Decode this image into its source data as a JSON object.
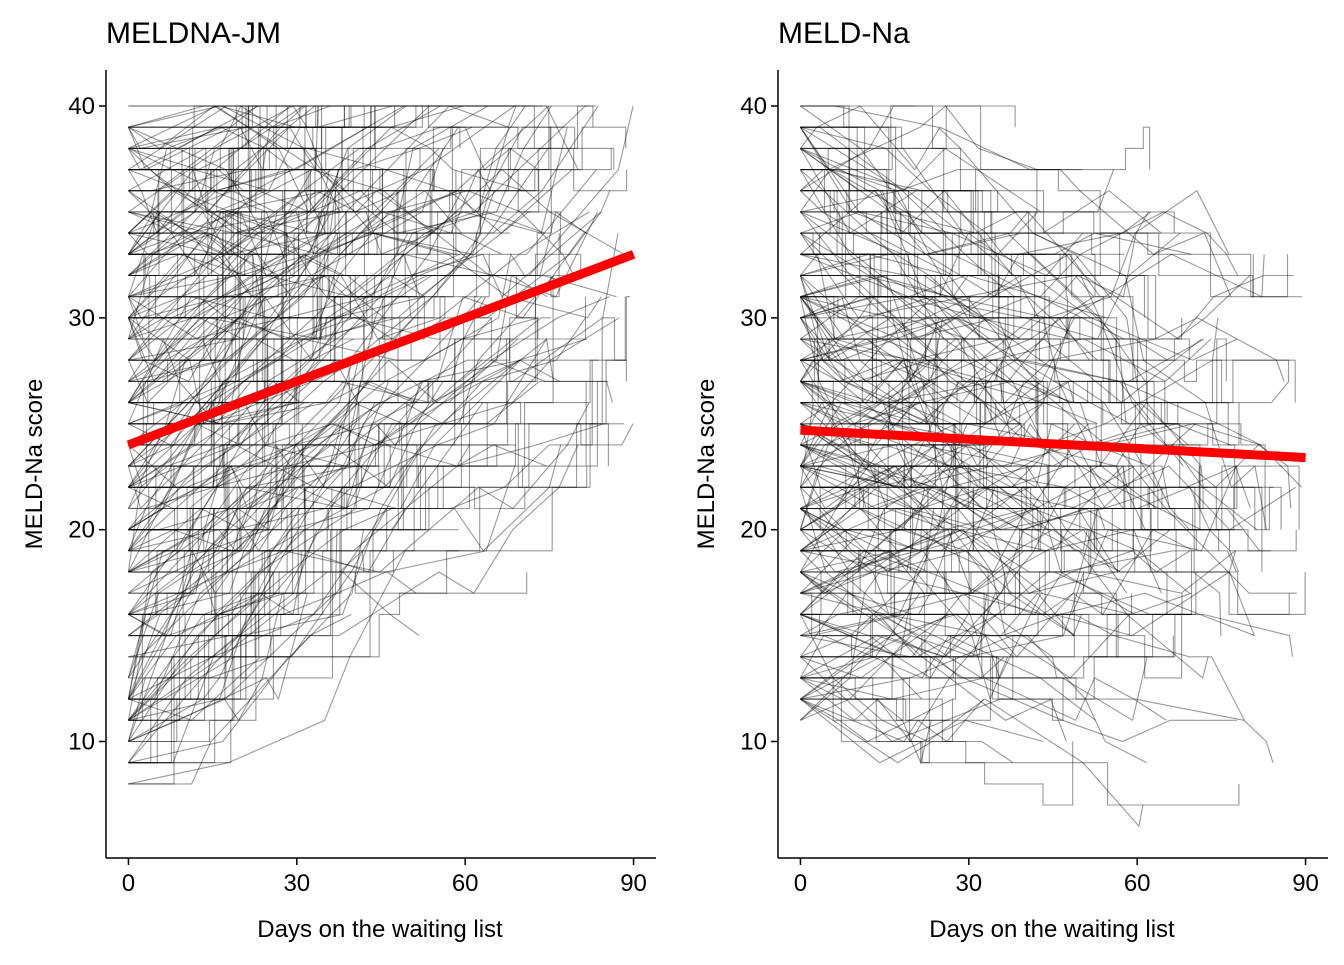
{
  "chart_data": [
    {
      "type": "line",
      "title": "MELDNA-JM",
      "xlabel": "Days on the waiting list",
      "ylabel": "MELD-Na score",
      "xlim": [
        -4,
        94
      ],
      "ylim": [
        4.5,
        41.7
      ],
      "xticks": [
        0,
        30,
        60,
        90
      ],
      "yticks": [
        10,
        20,
        30,
        40
      ],
      "grid": false,
      "legend": "none",
      "colors": {
        "trajectories": "#000000",
        "trend": "#ff0000"
      },
      "trajectories": {
        "count": 300,
        "seed": 17,
        "start_range": [
          8,
          40
        ],
        "slope_per_day": 0.1,
        "final_range": [
          21,
          40
        ],
        "y_clip": [
          8,
          40
        ],
        "opacity": 0.4
      },
      "series": [
        {
          "x": [
            0,
            90
          ],
          "y": [
            24.0,
            33.0
          ]
        }
      ]
    },
    {
      "type": "line",
      "title": "MELD-Na",
      "xlabel": "Days on the waiting list",
      "ylabel": "MELD-Na score",
      "xlim": [
        -4,
        94
      ],
      "ylim": [
        4.5,
        41.7
      ],
      "xticks": [
        0,
        30,
        60,
        90
      ],
      "yticks": [
        10,
        20,
        30,
        40
      ],
      "grid": false,
      "legend": "none",
      "colors": {
        "trajectories": "#000000",
        "trend": "#ff0000"
      },
      "trajectories": {
        "count": 300,
        "seed": 91,
        "start_range": [
          11,
          40
        ],
        "slope_per_day": -0.015,
        "final_range": [
          7,
          37
        ],
        "y_clip": [
          6,
          40
        ],
        "opacity": 0.4
      },
      "series": [
        {
          "x": [
            0,
            90
          ],
          "y": [
            24.7,
            23.4
          ]
        }
      ]
    }
  ]
}
